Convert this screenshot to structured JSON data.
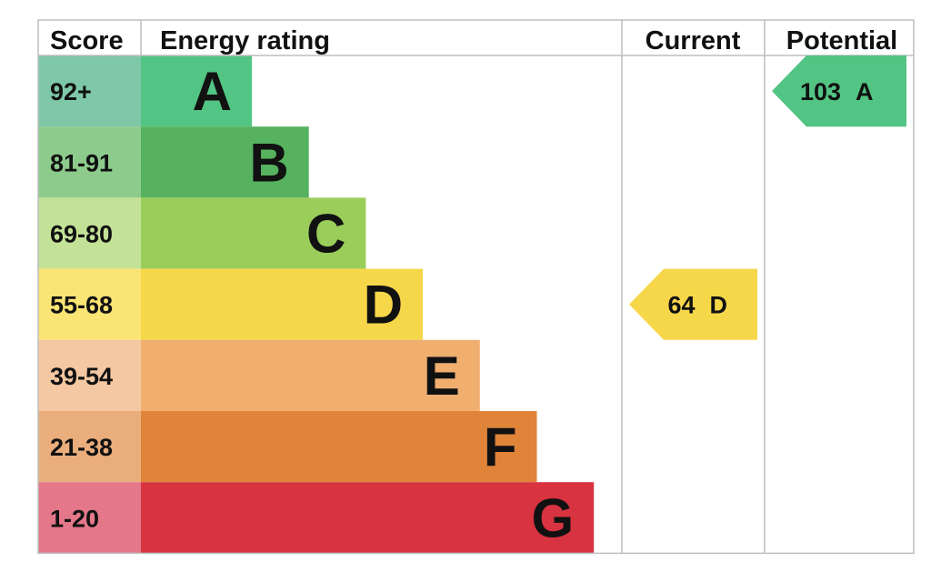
{
  "headers": {
    "score": "Score",
    "rating": "Energy rating",
    "current": "Current",
    "potential": "Potential"
  },
  "chart_data": {
    "type": "bar",
    "bands": [
      {
        "letter": "A",
        "range": "92+",
        "score_color": "#7ec8a8",
        "bar_color": "#52c483"
      },
      {
        "letter": "B",
        "range": "81-91",
        "score_color": "#8dcb8c",
        "bar_color": "#56b25f"
      },
      {
        "letter": "C",
        "range": "69-80",
        "score_color": "#c3e297",
        "bar_color": "#9acd5a"
      },
      {
        "letter": "D",
        "range": "55-68",
        "score_color": "#fae474",
        "bar_color": "#f7d74a"
      },
      {
        "letter": "E",
        "range": "39-54",
        "score_color": "#f4c8a2",
        "bar_color": "#f0ae6f"
      },
      {
        "letter": "F",
        "range": "21-38",
        "score_color": "#eaae7c",
        "bar_color": "#e0843a"
      },
      {
        "letter": "G",
        "range": "1-20",
        "score_color": "#e4788a",
        "bar_color": "#d73340"
      }
    ],
    "current": {
      "value": "64",
      "letter": "D",
      "color": "#f7d74a"
    },
    "potential": {
      "value": "103",
      "letter": "A",
      "color": "#52c483"
    }
  }
}
